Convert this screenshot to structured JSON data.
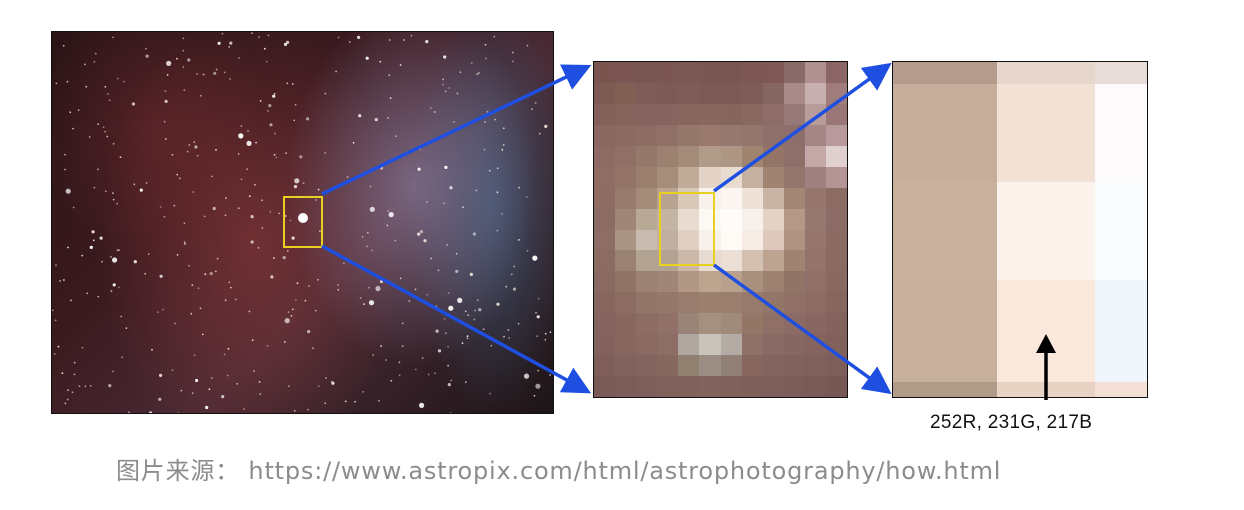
{
  "figure": {
    "pixel_value_label": "252R, 231G, 217B",
    "caption": "图片来源： https://www.astropix.com/html/astrophotography/how.html"
  },
  "colors": {
    "arrow": "#1f4fe0",
    "selection_box": "#e8d020",
    "pointer_arrow": "#000000"
  },
  "pixel_grid_mid": {
    "cols": 12,
    "rows": 16,
    "cells": [
      "#7a5550",
      "#7b5652",
      "#7a5652",
      "#7b5653",
      "#7c5854",
      "#7b5754",
      "#7a5652",
      "#7d5755",
      "#7d5856",
      "#8a6a68",
      "#b09090",
      "#8c6666",
      "#7e5a55",
      "#806055",
      "#7f5c58",
      "#7e5a57",
      "#7f5c58",
      "#7e5a57",
      "#7d5a55",
      "#7f5c58",
      "#866662",
      "#a88a88",
      "#c8b0b0",
      "#a07c7c",
      "#84605a",
      "#86645e",
      "#85635e",
      "#86645f",
      "#88665f",
      "#89675f",
      "#87655f",
      "#8a6862",
      "#8e6d68",
      "#967878",
      "#b89c9c",
      "#9a7676",
      "#8a6760",
      "#8c6a62",
      "#8e6c64",
      "#907066",
      "#94766a",
      "#98796c",
      "#977870",
      "#94766c",
      "#90706a",
      "#8e6e6a",
      "#a48686",
      "#b89a9c",
      "#8d6a63",
      "#907066",
      "#94786a",
      "#9c8070",
      "#a48a78",
      "#b09a88",
      "#ae9684",
      "#a08470",
      "#937466",
      "#8f6f6a",
      "#c4a8a8",
      "#e0d0d0",
      "#8f6d65",
      "#947468",
      "#9a7e6e",
      "#a68c7a",
      "#c0aa98",
      "#e4d4c8",
      "#e8dcd0",
      "#c4b0a0",
      "#a08472",
      "#94766c",
      "#a08080",
      "#b49494",
      "#8e6c64",
      "#987a6c",
      "#a48a78",
      "#b8a290",
      "#d8c8b8",
      "#f8f0ea",
      "#fcf4f0",
      "#eee2d8",
      "#c8b4a4",
      "#a48676",
      "#96766e",
      "#8e6c66",
      "#8c6b64",
      "#a08676",
      "#b8a896",
      "#c4b4a4",
      "#e8dcd0",
      "#fcf8f4",
      "#fefcfa",
      "#f8f0ea",
      "#e4d2c6",
      "#b49888",
      "#977870",
      "#8d6b66",
      "#8d6d66",
      "#aa9484",
      "#c8bcb0",
      "#c0b0a2",
      "#e0d0c4",
      "#f8f0ea",
      "#fefaf6",
      "#f6ece4",
      "#dcc8bc",
      "#b09482",
      "#96766c",
      "#8c6a64",
      "#8c6b63",
      "#9a8272",
      "#b2a292",
      "#b4a292",
      "#ccb8a8",
      "#e8dcd2",
      "#ece0d6",
      "#d4c0b0",
      "#bca490",
      "#a08472",
      "#94746a",
      "#8b6a64",
      "#8a6962",
      "#917466",
      "#9c8272",
      "#a08676",
      "#b09884",
      "#bca48e",
      "#b8a08c",
      "#a8907c",
      "#9c8070",
      "#927466",
      "#8f6f68",
      "#896862",
      "#886660",
      "#8c6c62",
      "#927468",
      "#96786a",
      "#9a7c6e",
      "#9c806e",
      "#9a7e6e",
      "#987a6c",
      "#947668",
      "#906f66",
      "#8c6b64",
      "#876660",
      "#85635e",
      "#88675f",
      "#8c6c64",
      "#907068",
      "#9a8478",
      "#a4907e",
      "#a08a7a",
      "#947666",
      "#907066",
      "#8c6b64",
      "#886762",
      "#84625e",
      "#83625d",
      "#86665f",
      "#896960",
      "#8c6e66",
      "#b0a8a0",
      "#c8c4bc",
      "#b4aca4",
      "#8e7268",
      "#8a6a64",
      "#876762",
      "#85645f",
      "#82605c",
      "#7f5e5a",
      "#82625d",
      "#84645e",
      "#86685f",
      "#908070",
      "#9a8e84",
      "#908076",
      "#86665e",
      "#84645e",
      "#82625e",
      "#80605c",
      "#7e5e5a",
      "#7a5a56",
      "#7c5c58",
      "#7e5e5a",
      "#7f605a",
      "#80625c",
      "#82645e",
      "#80625c",
      "#7f5f5a",
      "#7e5e5a",
      "#7c5c58",
      "#7a5a57",
      "#785855"
    ]
  },
  "pixel_grid_close": {
    "cols": 3,
    "rows": 5,
    "cells": [
      "#b49c8c",
      "#e6d6cc",
      "#e8dcd8",
      "#c6ae9c",
      "#f2e2d6",
      "#fcfafa",
      "#c8b29e",
      "#fcf4ec",
      "#f8fcfc",
      "#c8b09e",
      "#fae8dc",
      "#f0f6fc",
      "#b09a88",
      "#e8d2c4",
      "#f4e0d6"
    ]
  }
}
